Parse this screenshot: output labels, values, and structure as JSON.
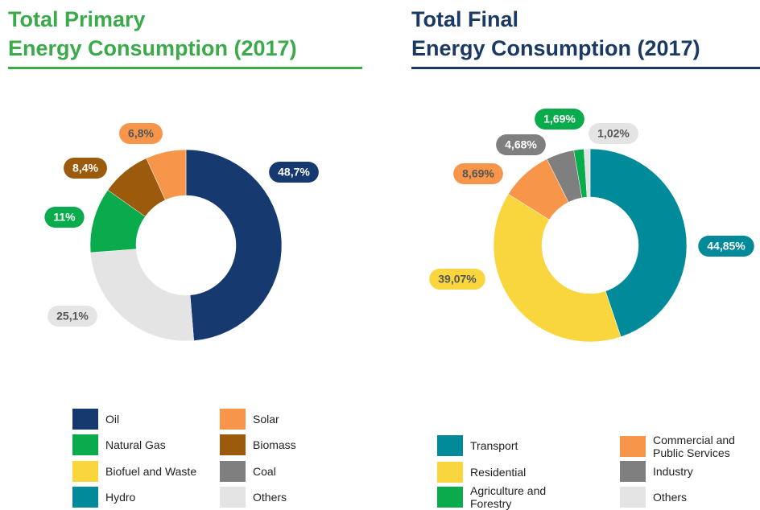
{
  "chart_data": [
    {
      "type": "donut",
      "title": [
        "Total Primary",
        "Energy Consumption (2017)"
      ],
      "title_color": "#3aaa4a",
      "categories": [
        "Oil",
        "Others",
        "Natural Gas",
        "Biomass",
        "Solar",
        "Biofuel and Waste",
        "Hydro",
        "Coal"
      ],
      "values": [
        48.7,
        25.1,
        11,
        8.4,
        6.8,
        null,
        null,
        null
      ],
      "value_labels": [
        "48,7%",
        "25,1%",
        "11%",
        "8,4%",
        "6,8%",
        null,
        null,
        null
      ],
      "colors": [
        "#163a70",
        "#e4e4e4",
        "#0aab4c",
        "#9c5a0c",
        "#f7964a",
        "#f9d63e",
        "#008a9a",
        "#7f7f7f"
      ]
    },
    {
      "type": "donut",
      "title": [
        "Total Final",
        "Energy Consumption (2017)"
      ],
      "title_color": "#1b3a63",
      "categories": [
        "Transport",
        "Residential",
        "Commercial and Public Services",
        "Industry",
        "Agriculture and Forestry",
        "Others"
      ],
      "values": [
        44.85,
        39.07,
        8.69,
        4.68,
        1.69,
        1.02
      ],
      "value_labels": [
        "44,85%",
        "39,07%",
        "8,69%",
        "4,68%",
        "1,69%",
        "1,02%"
      ],
      "colors": [
        "#008a9a",
        "#f9d63e",
        "#f7964a",
        "#7f7f7f",
        "#0aab4c",
        "#e4e4e4"
      ]
    }
  ]
}
